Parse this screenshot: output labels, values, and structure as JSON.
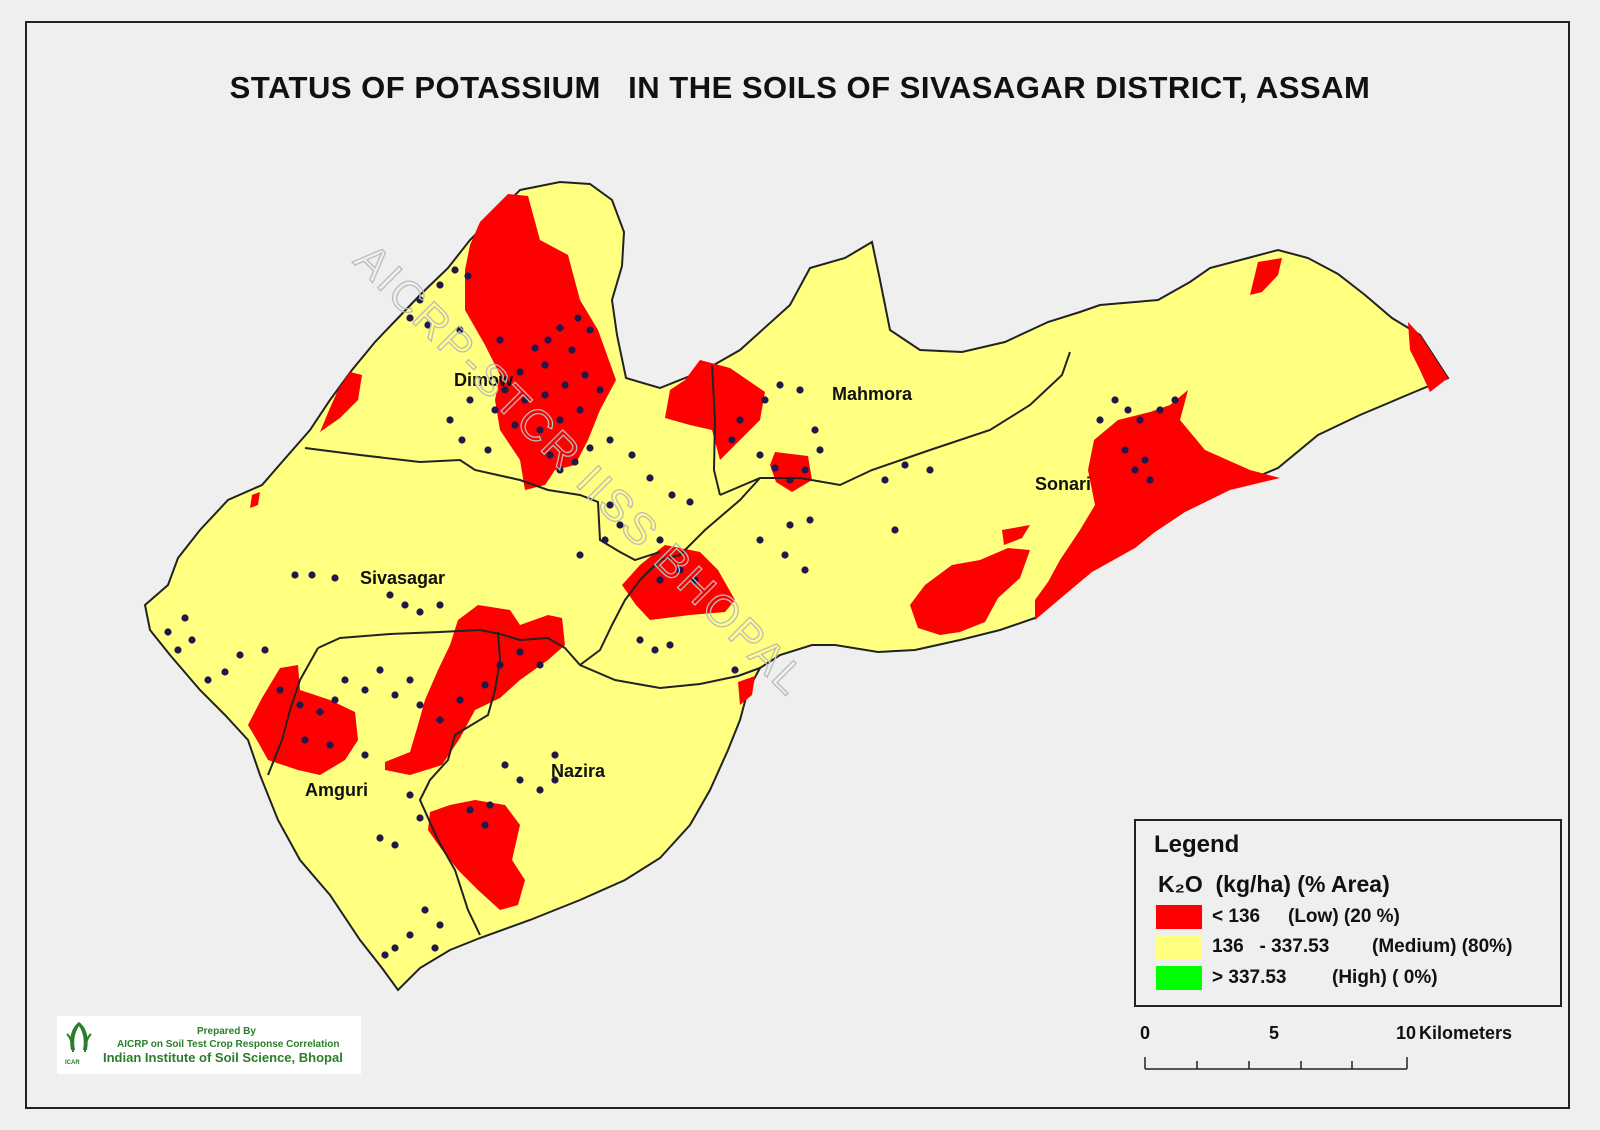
{
  "title": "STATUS OF POTASSIUM   IN THE SOILS OF SIVASAGAR DISTRICT, ASSAM",
  "colors": {
    "low": "#ff0000",
    "medium": "#ffff80",
    "high": "#00ff00",
    "boundary": "#222222",
    "points": "#20184a"
  },
  "regions": [
    "Dimow",
    "Mahmora",
    "Sivasagar",
    "Sonari",
    "Nazira",
    "Amguri"
  ],
  "watermark": "AICRP-STCR IISS BHOPAL",
  "legend": {
    "title": "Legend",
    "subtitle": "K₂O  (kg/ha) (% Area)",
    "classes": [
      {
        "range": "< 136",
        "label": "(Low) (20 %)",
        "color": "#ff0000"
      },
      {
        "range": "136   - 337.53",
        "label": "(Medium) (80%)",
        "color": "#ffff80"
      },
      {
        "range": "> 337.53",
        "label": "(High) ( 0%)",
        "color": "#00ff00"
      }
    ]
  },
  "scale": {
    "ticks": [
      "0",
      "5",
      "10"
    ],
    "unit": "Kilometers"
  },
  "credit": {
    "line1": "Prepared By",
    "line2": "AICRP on Soil Test Crop Response Correlation",
    "line3": "Indian Institute of Soil Science, Bhopal",
    "logo_text": "ICAR"
  }
}
